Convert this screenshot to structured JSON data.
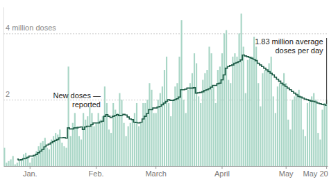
{
  "chart_data": {
    "type": "bar",
    "categories": [
      null,
      null,
      null,
      null,
      null,
      null,
      null,
      null,
      null,
      null,
      null,
      null,
      "Jan.",
      null,
      null,
      null,
      null,
      null,
      null,
      null,
      null,
      null,
      null,
      null,
      null,
      null,
      null,
      null,
      null,
      null,
      null,
      null,
      null,
      null,
      null,
      null,
      null,
      null,
      null,
      null,
      null,
      null,
      null,
      "Feb.",
      null,
      null,
      null,
      null,
      null,
      null,
      null,
      null,
      null,
      null,
      null,
      null,
      null,
      null,
      null,
      null,
      null,
      null,
      null,
      null,
      null,
      null,
      null,
      null,
      null,
      null,
      null,
      "March",
      null,
      null,
      null,
      null,
      null,
      null,
      null,
      null,
      null,
      null,
      null,
      null,
      null,
      null,
      null,
      null,
      null,
      null,
      null,
      null,
      null,
      null,
      null,
      null,
      null,
      null,
      null,
      null,
      null,
      null,
      "April",
      null,
      null,
      null,
      null,
      null,
      null,
      null,
      null,
      null,
      null,
      null,
      null,
      null,
      null,
      null,
      null,
      null,
      null,
      null,
      null,
      null,
      null,
      null,
      null,
      null,
      null,
      null,
      null,
      null,
      "May",
      null,
      null,
      null,
      null,
      null,
      null,
      null,
      null,
      null,
      null,
      null,
      null,
      null,
      null,
      null,
      null,
      null,
      null,
      "May 20"
    ],
    "series": [
      {
        "type": "bar",
        "color": "#a9d6c6",
        "values": [
          0.55,
          0.1,
          0.15,
          0.2,
          0.3,
          0.05,
          0.1,
          0.15,
          0.2,
          0.35,
          0.4,
          0.3,
          0.1,
          0.25,
          0.3,
          0.45,
          0.6,
          0.7,
          0.75,
          0.85,
          0.55,
          0.5,
          0.8,
          0.9,
          1.0,
          0.95,
          1.1,
          0.7,
          0.6,
          0.55,
          3.0,
          0.9,
          1.3,
          1.6,
          1.2,
          0.9,
          0.8,
          1.6,
          1.4,
          1.5,
          1.8,
          1.6,
          1.2,
          1.3,
          1.6,
          1.4,
          1.5,
          2.4,
          1.9,
          1.1,
          1.0,
          1.9,
          1.7,
          1.6,
          2.2,
          2.0,
          1.3,
          0.9,
          1.2,
          1.3,
          1.4,
          1.6,
          1.9,
          1.2,
          1.3,
          1.9,
          1.9,
          2.0,
          2.5,
          2.3,
          1.6,
          1.6,
          2.0,
          2.2,
          2.4,
          2.9,
          3.3,
          1.9,
          1.5,
          2.0,
          2.4,
          2.5,
          3.3,
          4.4,
          2.0,
          1.6,
          2.3,
          2.5,
          2.8,
          3.4,
          3.1,
          2.1,
          1.9,
          2.6,
          2.8,
          2.9,
          3.6,
          3.4,
          2.4,
          1.9,
          2.9,
          3.0,
          3.4,
          4.0,
          4.1,
          2.6,
          2.5,
          3.3,
          3.4,
          3.3,
          4.0,
          4.6,
          3.6,
          2.2,
          3.2,
          3.3,
          3.3,
          3.9,
          3.6,
          2.5,
          1.8,
          2.8,
          2.9,
          2.9,
          3.1,
          3.3,
          2.1,
          1.6,
          2.4,
          2.5,
          2.5,
          2.8,
          2.5,
          1.4,
          1.1,
          2.0,
          2.1,
          2.2,
          2.3,
          2.1,
          1.1,
          0.9,
          1.9,
          2.0,
          2.1,
          2.2,
          2.0,
          1.0,
          0.8,
          1.7,
          1.9,
          2.0
        ]
      },
      {
        "type": "line",
        "color": "#1d5a45",
        "line_style": "step",
        "values": [
          null,
          null,
          null,
          null,
          null,
          null,
          0.21,
          0.18,
          0.19,
          0.22,
          0.23,
          0.26,
          0.3,
          0.3,
          0.32,
          0.35,
          0.4,
          0.45,
          0.5,
          0.58,
          0.63,
          0.66,
          0.7,
          0.74,
          0.77,
          0.8,
          0.85,
          0.85,
          0.86,
          0.84,
          1.15,
          1.12,
          1.12,
          1.15,
          1.15,
          1.17,
          1.18,
          1.1,
          1.18,
          1.2,
          1.2,
          1.25,
          1.3,
          1.3,
          1.3,
          1.33,
          1.35,
          1.5,
          1.55,
          1.5,
          1.46,
          1.5,
          1.52,
          1.55,
          1.52,
          1.53,
          1.56,
          1.54,
          1.48,
          1.42,
          1.4,
          1.32,
          1.31,
          1.3,
          1.32,
          1.42,
          1.5,
          1.58,
          1.7,
          1.7,
          1.75,
          1.75,
          1.78,
          1.8,
          1.85,
          1.9,
          1.95,
          2.0,
          1.98,
          1.98,
          2.0,
          2.03,
          2.08,
          2.3,
          2.3,
          2.32,
          2.35,
          2.35,
          2.35,
          2.36,
          2.2,
          2.21,
          2.22,
          2.24,
          2.28,
          2.3,
          2.33,
          2.38,
          2.43,
          2.43,
          2.48,
          2.5,
          2.6,
          2.75,
          2.95,
          3.0,
          3.03,
          3.05,
          3.1,
          3.12,
          3.15,
          3.2,
          3.35,
          3.32,
          3.3,
          3.28,
          3.25,
          3.22,
          3.18,
          3.1,
          3.05,
          3.0,
          2.95,
          2.9,
          2.85,
          2.8,
          2.75,
          2.68,
          2.62,
          2.56,
          2.5,
          2.45,
          2.4,
          2.35,
          2.3,
          2.25,
          2.2,
          2.15,
          2.1,
          2.08,
          2.05,
          2.02,
          2.0,
          1.98,
          1.96,
          1.95,
          1.93,
          1.9,
          1.88,
          1.86,
          1.85,
          1.83
        ]
      }
    ],
    "ylim": [
      0,
      4.8
    ],
    "yticks": [
      2,
      {
        "value": 4,
        "label": "4 million doses"
      }
    ],
    "grid": true,
    "annotations": [
      {
        "text": [
          "New doses —",
          "reported"
        ]
      },
      {
        "text": [
          "1.83 million average",
          "doses per day"
        ]
      }
    ]
  }
}
